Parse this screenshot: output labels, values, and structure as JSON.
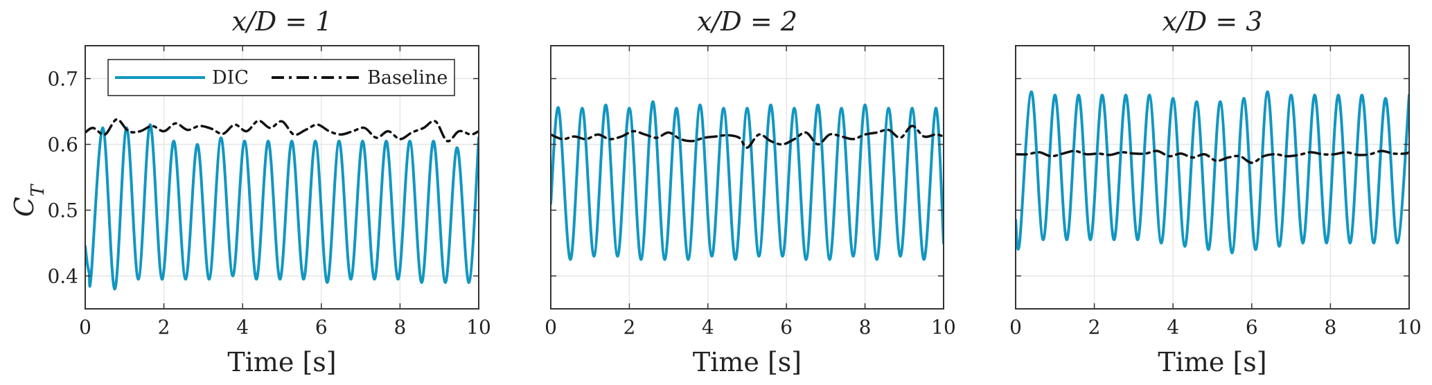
{
  "figure": {
    "ylabel": "C_T",
    "ylabel_main": "C",
    "ylabel_sub": "T"
  },
  "legend": {
    "location": "top-left of first panel",
    "entries": [
      {
        "name": "DIC",
        "color": "#1296c1",
        "style": "solid"
      },
      {
        "name": "Baseline",
        "color": "#111111",
        "style": "dash-dot"
      }
    ]
  },
  "colors": {
    "dic": "#1296c1",
    "baseline": "#111111",
    "grid": "#e6e6e6",
    "axis": "#333333"
  },
  "chart_data": [
    {
      "type": "line",
      "title": "x/D = 1",
      "xlabel": "Time [s]",
      "xlim": [
        0,
        10
      ],
      "ylim": [
        0.35,
        0.75
      ],
      "xticks": [
        0,
        2,
        4,
        6,
        8,
        10
      ],
      "xtick_labels": [
        "0",
        "2",
        "4",
        "6",
        "8",
        "10"
      ],
      "yticks": [
        0.4,
        0.5,
        0.6,
        0.7
      ],
      "ytick_labels": [
        "0.4",
        "0.5",
        "0.6",
        "0.7"
      ],
      "grid": true,
      "series": [
        {
          "name": "DIC",
          "x": [
            0,
            0.05,
            0.1,
            0.15,
            0.45,
            0.75,
            1.05,
            1.35,
            1.65,
            1.95,
            2.25,
            2.55,
            2.85,
            3.15,
            3.45,
            3.75,
            4.05,
            4.35,
            4.65,
            4.95,
            5.25,
            5.55,
            5.85,
            6.15,
            6.45,
            6.75,
            7.05,
            7.35,
            7.65,
            7.95,
            8.25,
            8.55,
            8.85,
            9.15,
            9.45,
            9.75,
            10.0
          ],
          "y": [
            0.445,
            0.42,
            0.405,
            0.4,
            0.625,
            0.38,
            0.625,
            0.395,
            0.63,
            0.395,
            0.605,
            0.395,
            0.6,
            0.395,
            0.61,
            0.4,
            0.605,
            0.395,
            0.605,
            0.395,
            0.605,
            0.395,
            0.605,
            0.39,
            0.605,
            0.395,
            0.605,
            0.395,
            0.605,
            0.395,
            0.605,
            0.39,
            0.605,
            0.39,
            0.595,
            0.39,
            0.61
          ]
        },
        {
          "name": "Baseline",
          "x": [
            0,
            0.2,
            0.5,
            0.8,
            1.1,
            1.4,
            1.7,
            2.0,
            2.3,
            2.6,
            2.9,
            3.2,
            3.5,
            3.8,
            4.1,
            4.4,
            4.7,
            5.0,
            5.3,
            5.6,
            5.9,
            6.2,
            6.5,
            6.8,
            7.1,
            7.4,
            7.7,
            8.0,
            8.3,
            8.6,
            8.9,
            9.2,
            9.5,
            9.8,
            10.0
          ],
          "y": [
            0.618,
            0.625,
            0.615,
            0.638,
            0.62,
            0.62,
            0.628,
            0.62,
            0.632,
            0.622,
            0.628,
            0.624,
            0.616,
            0.63,
            0.62,
            0.636,
            0.625,
            0.635,
            0.615,
            0.622,
            0.63,
            0.62,
            0.615,
            0.62,
            0.625,
            0.61,
            0.62,
            0.608,
            0.618,
            0.625,
            0.635,
            0.605,
            0.62,
            0.615,
            0.62
          ]
        }
      ]
    },
    {
      "type": "line",
      "title": "x/D = 2",
      "xlabel": "Time [s]",
      "xlim": [
        0,
        10
      ],
      "ylim": [
        0.35,
        0.75
      ],
      "xticks": [
        0,
        2,
        4,
        6,
        8,
        10
      ],
      "xtick_labels": [
        "0",
        "2",
        "4",
        "6",
        "8",
        "10"
      ],
      "yticks": [
        0.4,
        0.5,
        0.6,
        0.7
      ],
      "ytick_labels": [
        "",
        "",
        "",
        ""
      ],
      "grid": true,
      "series": [
        {
          "name": "DIC",
          "x": [
            0,
            0.2,
            0.5,
            0.8,
            1.1,
            1.4,
            1.7,
            2.0,
            2.3,
            2.6,
            2.9,
            3.2,
            3.5,
            3.8,
            4.1,
            4.4,
            4.7,
            5.0,
            5.3,
            5.6,
            5.9,
            6.2,
            6.5,
            6.8,
            7.1,
            7.4,
            7.7,
            8.0,
            8.3,
            8.6,
            8.9,
            9.2,
            9.5,
            9.8,
            10.0
          ],
          "y": [
            0.51,
            0.655,
            0.425,
            0.655,
            0.43,
            0.66,
            0.43,
            0.655,
            0.425,
            0.665,
            0.425,
            0.655,
            0.425,
            0.66,
            0.43,
            0.655,
            0.425,
            0.655,
            0.43,
            0.66,
            0.43,
            0.655,
            0.425,
            0.66,
            0.425,
            0.655,
            0.43,
            0.66,
            0.425,
            0.655,
            0.43,
            0.655,
            0.425,
            0.655,
            0.45
          ]
        },
        {
          "name": "Baseline",
          "x": [
            0,
            0.3,
            0.6,
            0.9,
            1.2,
            1.5,
            1.8,
            2.1,
            2.4,
            2.7,
            3.0,
            3.3,
            3.6,
            3.9,
            4.2,
            4.5,
            4.8,
            5.0,
            5.3,
            5.6,
            5.9,
            6.2,
            6.5,
            6.8,
            7.1,
            7.4,
            7.7,
            8.0,
            8.3,
            8.6,
            8.9,
            9.2,
            9.5,
            9.8,
            10.0
          ],
          "y": [
            0.615,
            0.608,
            0.612,
            0.608,
            0.615,
            0.608,
            0.612,
            0.62,
            0.615,
            0.61,
            0.618,
            0.608,
            0.605,
            0.61,
            0.612,
            0.614,
            0.61,
            0.595,
            0.615,
            0.605,
            0.6,
            0.608,
            0.618,
            0.6,
            0.615,
            0.612,
            0.608,
            0.615,
            0.618,
            0.622,
            0.61,
            0.628,
            0.612,
            0.615,
            0.612
          ]
        }
      ]
    },
    {
      "type": "line",
      "title": "x/D = 3",
      "xlabel": "Time [s]",
      "xlim": [
        0,
        10
      ],
      "ylim": [
        0.35,
        0.75
      ],
      "xticks": [
        0,
        2,
        4,
        6,
        8,
        10
      ],
      "xtick_labels": [
        "0",
        "2",
        "4",
        "6",
        "8",
        "10"
      ],
      "yticks": [
        0.4,
        0.5,
        0.6,
        0.7
      ],
      "ytick_labels": [
        "",
        "",
        "",
        ""
      ],
      "grid": true,
      "series": [
        {
          "name": "DIC",
          "x": [
            0,
            0.1,
            0.4,
            0.7,
            1.0,
            1.3,
            1.6,
            1.9,
            2.2,
            2.5,
            2.8,
            3.1,
            3.4,
            3.7,
            4.0,
            4.3,
            4.6,
            4.9,
            5.2,
            5.5,
            5.8,
            6.1,
            6.4,
            6.7,
            7.0,
            7.3,
            7.6,
            7.9,
            8.2,
            8.5,
            8.8,
            9.1,
            9.4,
            9.7,
            10.0
          ],
          "y": [
            0.485,
            0.45,
            0.68,
            0.455,
            0.675,
            0.455,
            0.675,
            0.455,
            0.675,
            0.455,
            0.675,
            0.455,
            0.675,
            0.45,
            0.67,
            0.445,
            0.665,
            0.44,
            0.665,
            0.435,
            0.67,
            0.44,
            0.68,
            0.445,
            0.675,
            0.45,
            0.675,
            0.45,
            0.675,
            0.45,
            0.675,
            0.45,
            0.67,
            0.45,
            0.675
          ]
        },
        {
          "name": "Baseline",
          "x": [
            0,
            0.3,
            0.6,
            0.9,
            1.2,
            1.5,
            1.8,
            2.1,
            2.4,
            2.7,
            3.0,
            3.3,
            3.6,
            3.9,
            4.2,
            4.5,
            4.8,
            5.1,
            5.4,
            5.7,
            6.0,
            6.3,
            6.6,
            6.9,
            7.2,
            7.5,
            7.8,
            8.1,
            8.4,
            8.7,
            9.0,
            9.3,
            9.6,
            9.9,
            10.0
          ],
          "y": [
            0.585,
            0.585,
            0.588,
            0.582,
            0.586,
            0.59,
            0.585,
            0.586,
            0.584,
            0.588,
            0.586,
            0.586,
            0.59,
            0.582,
            0.586,
            0.58,
            0.585,
            0.575,
            0.58,
            0.582,
            0.572,
            0.582,
            0.585,
            0.582,
            0.584,
            0.588,
            0.585,
            0.585,
            0.588,
            0.584,
            0.585,
            0.59,
            0.586,
            0.586,
            0.588
          ]
        }
      ]
    }
  ]
}
